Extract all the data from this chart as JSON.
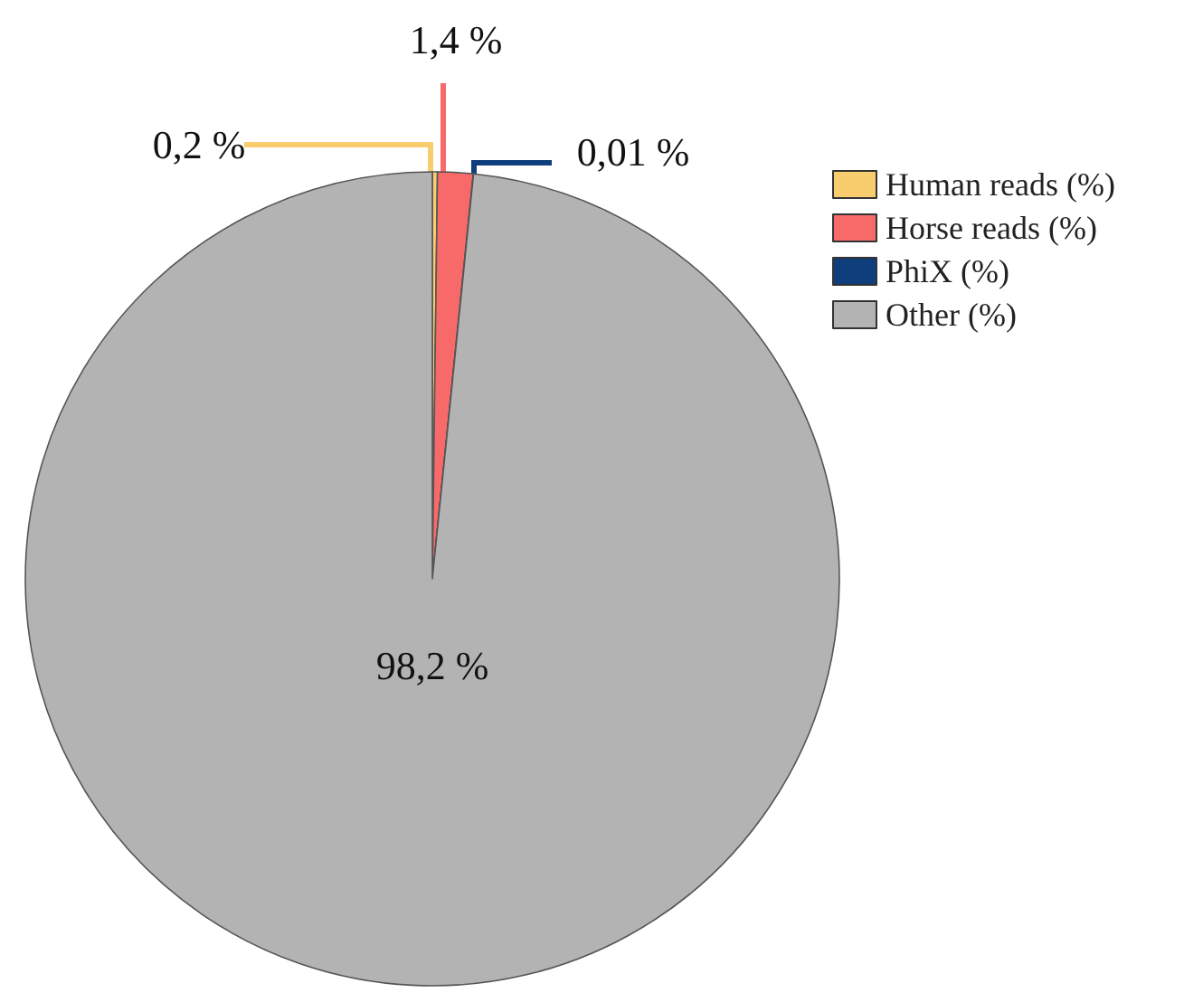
{
  "chart_data": {
    "type": "pie",
    "categories": [
      "Human reads (%)",
      "Horse reads (%)",
      "PhiX (%)",
      "Other (%)"
    ],
    "values": [
      0.2,
      1.4,
      0.01,
      98.2
    ],
    "colors": [
      "#f9cd6e",
      "#f86a6a",
      "#0e3f7c",
      "#b3b3b3"
    ],
    "value_labels": [
      "0,2 %",
      "1,4 %",
      "0,01 %",
      "98,2 %"
    ],
    "legend": "top right"
  }
}
